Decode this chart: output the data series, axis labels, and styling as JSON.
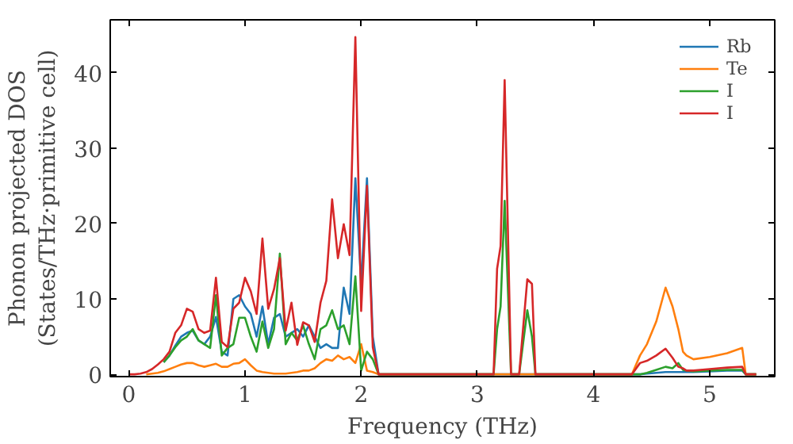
{
  "chart_data": {
    "type": "line",
    "xlabel": "Frequency (THz)",
    "ylabel": "Phonon projected DOS\n(States/THz·primitive cell)",
    "x": [
      0,
      0.05,
      0.1,
      0.15,
      0.2,
      0.25,
      0.3,
      0.35,
      0.4,
      0.45,
      0.5,
      0.55,
      0.6,
      0.65,
      0.7,
      0.75,
      0.8,
      0.85,
      0.9,
      0.95,
      1.0,
      1.05,
      1.1,
      1.15,
      1.2,
      1.25,
      1.3,
      1.35,
      1.4,
      1.45,
      1.5,
      1.55,
      1.6,
      1.65,
      1.7,
      1.75,
      1.8,
      1.85,
      1.9,
      1.95,
      2.0,
      2.05,
      2.1,
      2.15,
      2.2,
      3.1,
      3.14,
      3.17,
      3.2,
      3.235,
      3.29,
      3.36,
      3.43,
      3.47,
      3.5,
      3.55,
      4.25,
      4.33,
      4.4,
      4.46,
      4.54,
      4.62,
      4.68,
      4.73,
      4.77,
      4.8,
      4.86,
      5.0,
      5.15,
      5.28,
      5.31,
      5.4
    ],
    "series": [
      {
        "name": "Rb",
        "color": "#1f77b4",
        "values": [
          null,
          null,
          null,
          null,
          null,
          null,
          1.6,
          2.5,
          3.8,
          5,
          5.5,
          5.8,
          4.5,
          4,
          5,
          7.6,
          3,
          2.5,
          10,
          10.5,
          9,
          8,
          5,
          9,
          4,
          7.5,
          8,
          5,
          5.5,
          6,
          5,
          6.5,
          5,
          3.5,
          4,
          3.5,
          3.5,
          11.5,
          8,
          26,
          12,
          26,
          5,
          0,
          0,
          0,
          0,
          0,
          0,
          0,
          0,
          0,
          0,
          0,
          0,
          0,
          0,
          0,
          0,
          0.1,
          0.2,
          0.3,
          0.3,
          0.3,
          0.3,
          0.3,
          0.3,
          0.4,
          0.5,
          0.5,
          0,
          0
        ]
      },
      {
        "name": "Te",
        "color": "#ff7f0e",
        "values": [
          null,
          null,
          null,
          0,
          0.1,
          0.2,
          0.4,
          0.7,
          1,
          1.3,
          1.5,
          1.5,
          1.2,
          1,
          1.2,
          1.4,
          1,
          1,
          1.4,
          1.5,
          2,
          1.2,
          0.5,
          0.3,
          0.2,
          0.1,
          0.1,
          0.1,
          0.2,
          0.3,
          0.5,
          0.5,
          0.8,
          1.5,
          2,
          1.8,
          2.5,
          2,
          2.3,
          1.5,
          4,
          0.5,
          0.3,
          0,
          0,
          0,
          0,
          0,
          0,
          0,
          0,
          0,
          0,
          0,
          0,
          0,
          0,
          0,
          2.5,
          4,
          7,
          11.5,
          9,
          6,
          3,
          2.5,
          2,
          2.3,
          2.8,
          3.5,
          0,
          0
        ]
      },
      {
        "name": "I",
        "color": "#2ca02c",
        "values": [
          null,
          null,
          null,
          null,
          null,
          null,
          1.6,
          2.5,
          3.6,
          4.5,
          5,
          6,
          4.5,
          4,
          3.5,
          10.5,
          2.5,
          3.5,
          4,
          7.5,
          7.5,
          5,
          3,
          7,
          3.5,
          6,
          16,
          4,
          5.5,
          4.5,
          6.5,
          4,
          2,
          6,
          6.5,
          8.5,
          6,
          6.5,
          4,
          13,
          0.5,
          3,
          2,
          0,
          0,
          0,
          0,
          6,
          9,
          23,
          0,
          0,
          8.5,
          5,
          0,
          0,
          0,
          0,
          0,
          0.2,
          0.6,
          1,
          0.8,
          1.5,
          0.6,
          0.5,
          0.4,
          0.5,
          0.6,
          0.6,
          0,
          0
        ]
      },
      {
        "name": "I",
        "color": "#d62728",
        "values": [
          0,
          0,
          0.1,
          0.3,
          0.7,
          1.3,
          2,
          3,
          5.5,
          6.5,
          8.7,
          8.3,
          6,
          5.5,
          5.8,
          12.8,
          4.3,
          3.6,
          8.7,
          9.5,
          12.8,
          11,
          8,
          18,
          8.7,
          11.3,
          15.4,
          5.8,
          9.5,
          3.9,
          6.9,
          6.5,
          4.3,
          9.5,
          12.4,
          23.2,
          15.4,
          19.9,
          15.8,
          44.7,
          8.4,
          25,
          3.6,
          0,
          0,
          0,
          0,
          14,
          17,
          39,
          0,
          0,
          12.6,
          12,
          0,
          0,
          0,
          0,
          1.5,
          1.8,
          2.5,
          3.4,
          2.2,
          1,
          0.8,
          0.5,
          0.5,
          0.7,
          0.9,
          1,
          0,
          0
        ]
      }
    ],
    "xlim": [
      -0.16,
      5.56
    ],
    "ylim": [
      -0.3,
      47
    ],
    "xticks": [
      0,
      1,
      2,
      3,
      4,
      5
    ],
    "yticks": [
      0,
      10,
      20,
      30,
      40
    ],
    "grid": false,
    "legend": "top right"
  }
}
